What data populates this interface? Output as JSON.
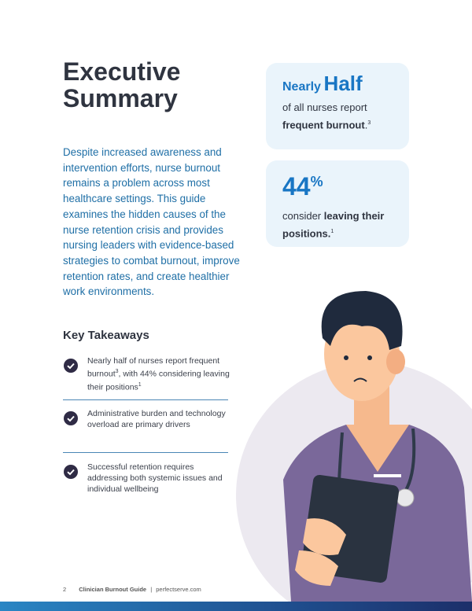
{
  "header": {
    "title": "Executive Summary"
  },
  "intro": "Despite increased awareness and intervention efforts, nurse burnout remains a problem across most healthcare settings. This guide examines the hidden causes of the nurse retention crisis and provides nursing leaders with evidence-based strategies to combat burnout, improve retention rates, and create healthier work environments.",
  "stats": [
    {
      "lead": "Nearly",
      "headline": "Half",
      "text": "of all nurses report",
      "bold": "frequent burnout",
      "after": ".",
      "sup": "3"
    },
    {
      "headline": "44",
      "unit": "%",
      "text": "consider",
      "bold": "leaving their positions.",
      "sup": "1"
    }
  ],
  "takeaways": {
    "title": "Key Takeaways",
    "items": [
      {
        "parts": [
          "Nearly half of nurses report frequent burnout",
          "3",
          ", with 44% considering leaving their positions",
          "1"
        ]
      },
      {
        "parts": [
          "Administrative burden and technology overload are primary drivers"
        ]
      },
      {
        "parts": [
          "Successful retention requires addressing both systemic issues and individual wellbeing"
        ]
      }
    ]
  },
  "footer": {
    "page": "2",
    "guide": "Clinician Burnout Guide",
    "separator": "|",
    "site": "perfectserve.com"
  }
}
